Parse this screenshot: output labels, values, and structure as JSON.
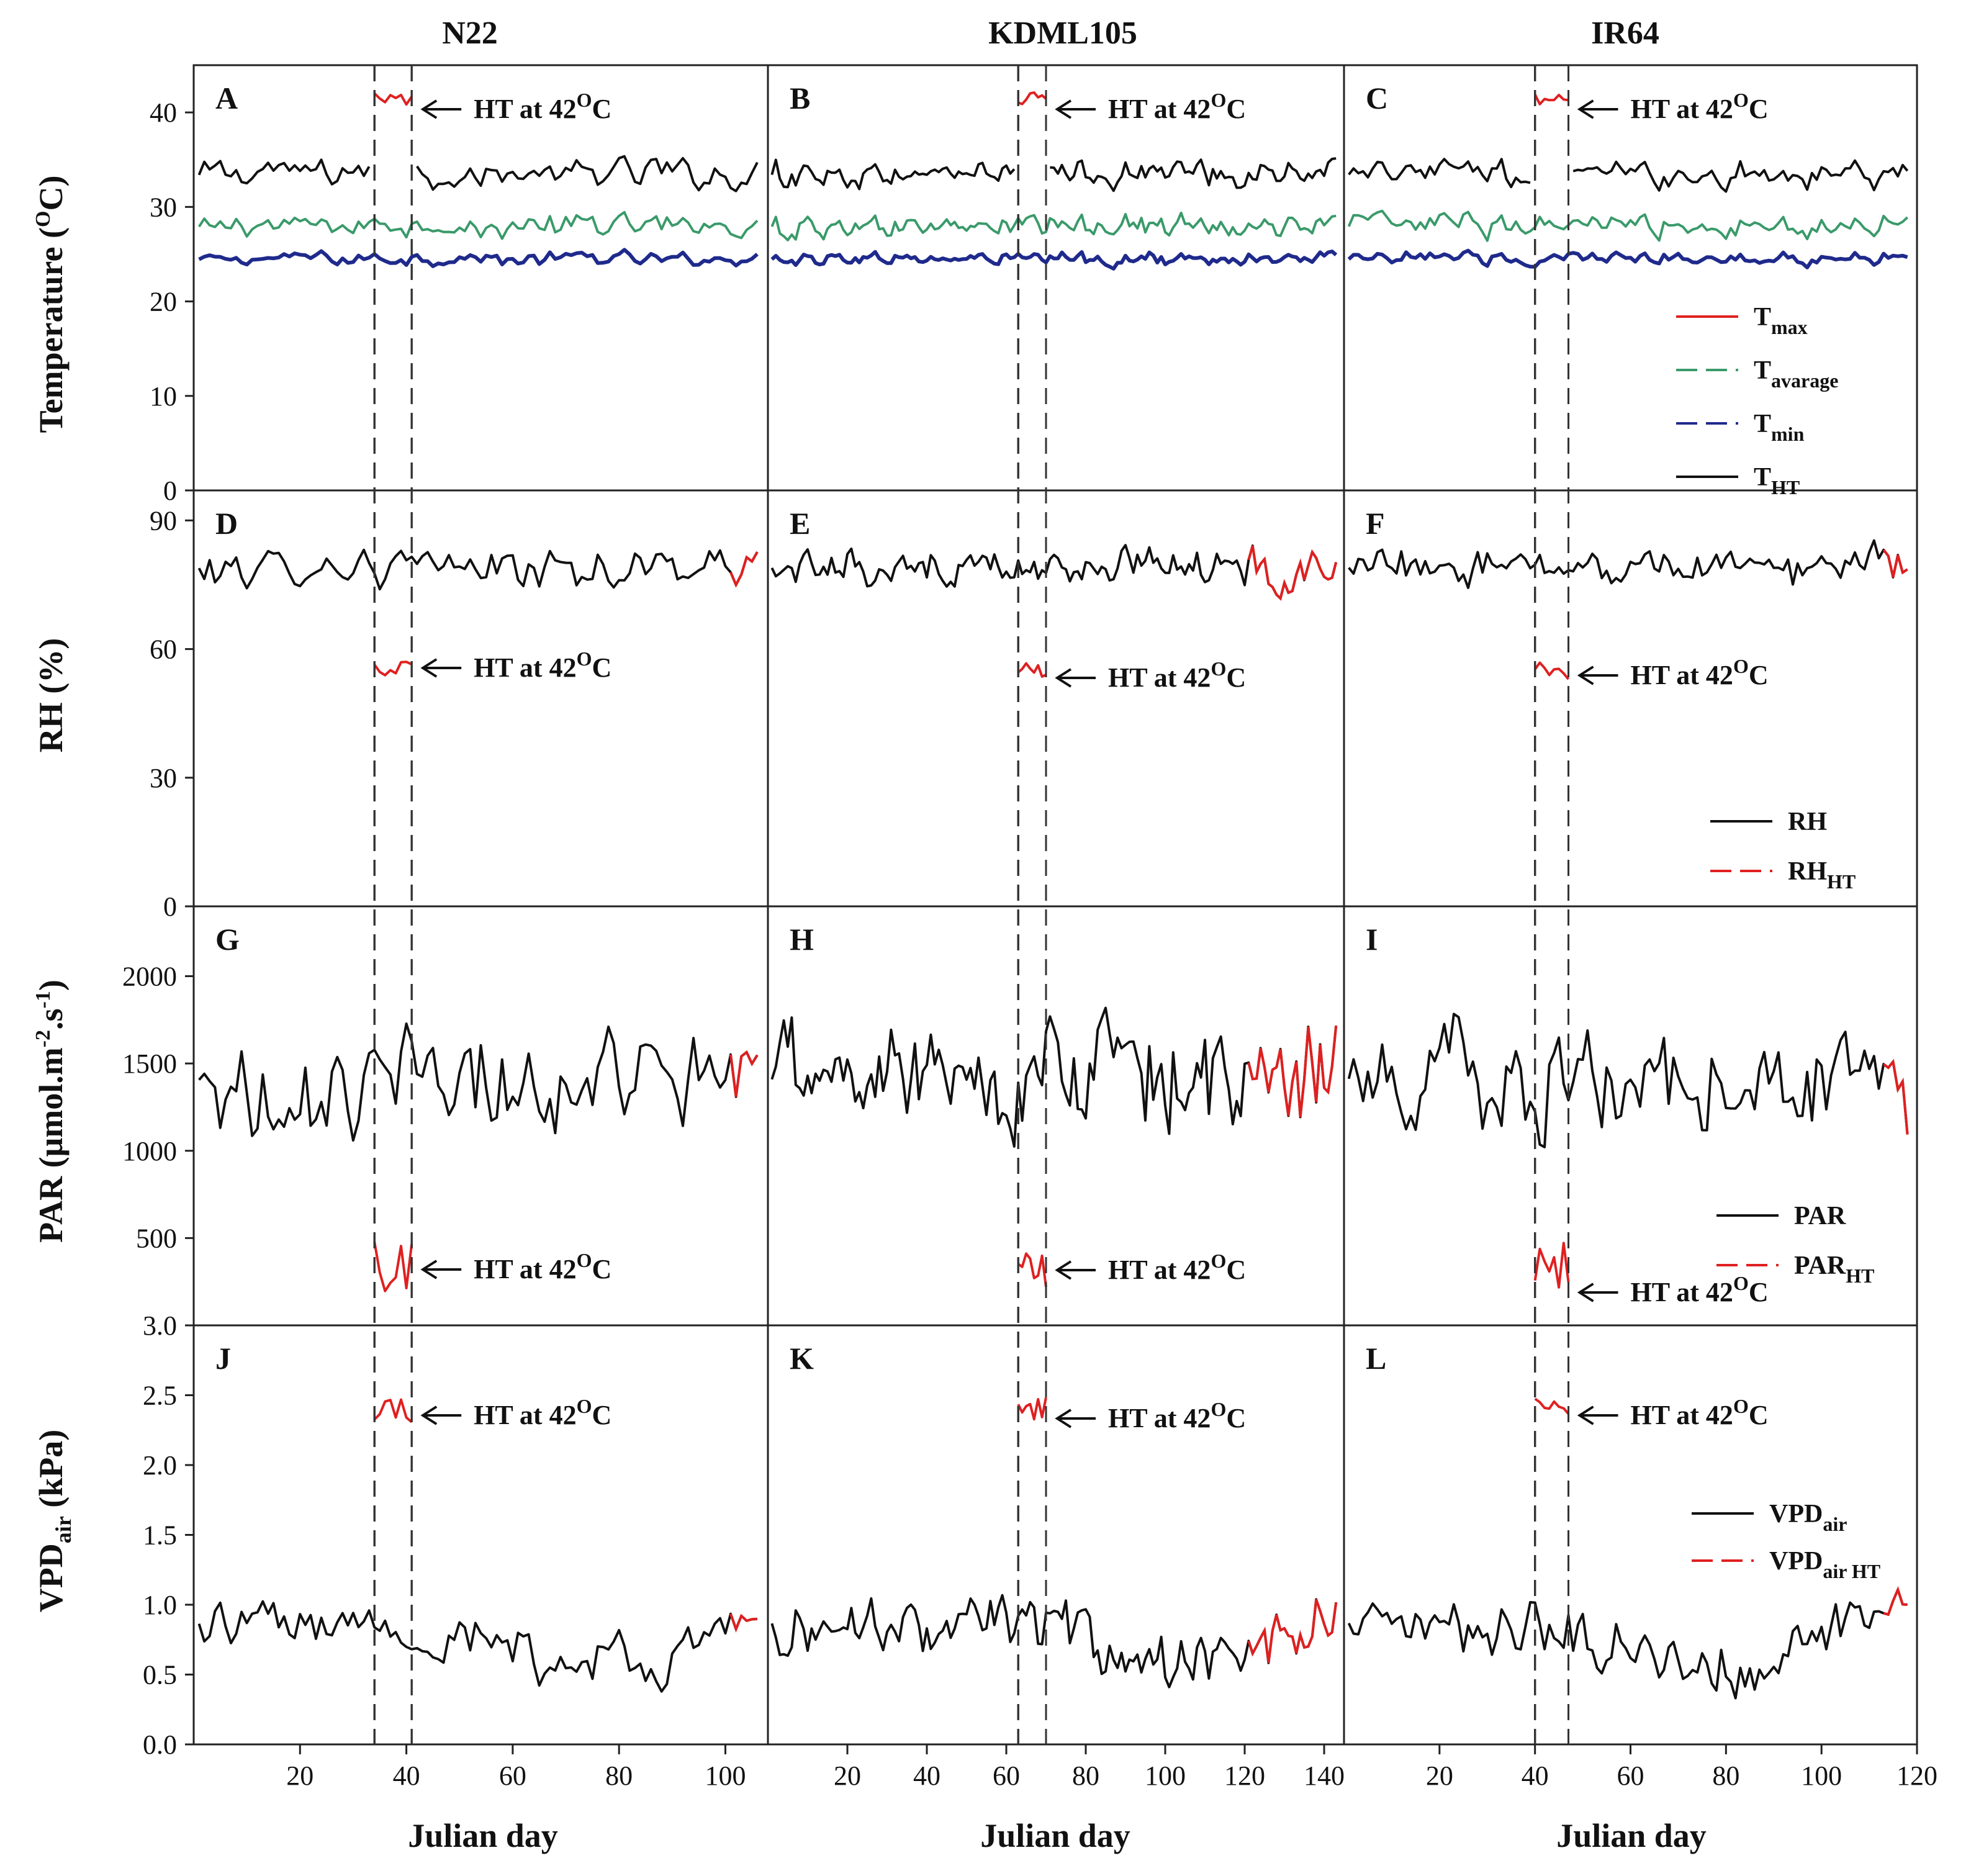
{
  "chart_data": {
    "type": "line",
    "layout": "grid-4x3",
    "xlabel": "Julian day",
    "annotation": "HT at 42",
    "annotation_unit": "C",
    "annotation_super": "O",
    "columns": [
      {
        "title": "N22",
        "xlim": [
          0,
          108
        ],
        "xticks": [
          20,
          40,
          60,
          80,
          100
        ],
        "ht_window": [
          34,
          41
        ],
        "ht_color_start": 101
      },
      {
        "title": "KDML105",
        "xlim": [
          0,
          145
        ],
        "xticks": [
          20,
          40,
          60,
          80,
          100,
          120,
          140
        ],
        "ht_window": [
          63,
          70
        ],
        "ht_color_start": 121
      },
      {
        "title": "IR64",
        "xlim": [
          0,
          120
        ],
        "xticks": [
          20,
          40,
          60,
          80,
          100,
          120
        ],
        "ht_window": [
          40,
          47
        ],
        "ht_color_start": 113
      }
    ],
    "rows": [
      {
        "variable": "Temperature",
        "ylabel_main": "Temperature (",
        "ylabel_super": "O",
        "ylabel_unit": "C)",
        "ylim": [
          0,
          45
        ],
        "yticks": [
          0,
          10,
          20,
          30,
          40
        ],
        "series": [
          {
            "name": "T",
            "sub": "max",
            "color": "#e02020",
            "style": "solid",
            "baseline": 33.5,
            "ht_value": 41.5
          },
          {
            "name": "T",
            "sub": "avarage",
            "color": "#3a9a6a",
            "style": "dash",
            "baseline": 28.0,
            "ht_value": null
          },
          {
            "name": "T",
            "sub": "min",
            "color": "#1f2a8c",
            "style": "dash",
            "baseline": 24.5,
            "ht_value": null
          },
          {
            "name": "T",
            "sub": "HT",
            "color": "#111111",
            "style": "solid",
            "baseline": 33.5,
            "ht_value": null
          }
        ]
      },
      {
        "variable": "RH",
        "ylabel_main": "RH (%)",
        "ylim": [
          0,
          97
        ],
        "yticks": [
          0,
          30,
          60,
          90
        ],
        "series": [
          {
            "name": "RH",
            "sub": "",
            "color": "#111111",
            "style": "solid",
            "baseline": 79,
            "ht_value": null
          },
          {
            "name": "RH",
            "sub": "HT",
            "color": "#e02020",
            "style": "dash",
            "baseline": 79,
            "ht_value": 55
          }
        ]
      },
      {
        "variable": "PAR",
        "ylabel_main": "PAR (μmol.m",
        "ylabel_super1": "-2",
        "ylabel_mid": ".s",
        "ylabel_super2": "-1",
        "ylabel_end": ")",
        "ylim": [
          0,
          2400
        ],
        "yticks": [
          500,
          1000,
          1500,
          2000
        ],
        "series": [
          {
            "name": "PAR",
            "sub": "",
            "color": "#111111",
            "style": "solid",
            "baseline": 1400,
            "ht_value": null
          },
          {
            "name": "PAR",
            "sub": "HT",
            "color": "#e02020",
            "style": "dash",
            "baseline": 1400,
            "ht_value": 340
          }
        ]
      },
      {
        "variable": "VPD",
        "ylabel_main": "VPD",
        "ylabel_sub": "air",
        "ylabel_unit": " (kPa)",
        "ylim": [
          0,
          3.0
        ],
        "yticks": [
          0.0,
          0.5,
          1.0,
          1.5,
          2.0,
          2.5,
          3.0
        ],
        "series": [
          {
            "name": "VPD",
            "sub": "air",
            "color": "#111111",
            "style": "solid",
            "baseline": 0.85,
            "ht_value": null
          },
          {
            "name": "VPD",
            "sub": "air HT",
            "color": "#e02020",
            "style": "dash",
            "baseline": 0.85,
            "ht_value": 2.4
          }
        ]
      }
    ],
    "panel_letters": [
      [
        "A",
        "B",
        "C"
      ],
      [
        "D",
        "E",
        "F"
      ],
      [
        "G",
        "H",
        "I"
      ],
      [
        "J",
        "K",
        "L"
      ]
    ],
    "tick_labels": {
      "temperature": [
        "0",
        "10",
        "20",
        "30",
        "40"
      ],
      "rh": [
        "0",
        "30",
        "60",
        "90"
      ],
      "par": [
        "500",
        "1000",
        "1500",
        "2000"
      ],
      "vpd": [
        "0.0",
        "0.5",
        "1.0",
        "1.5",
        "2.0",
        "2.5",
        "3.0"
      ],
      "x": [
        [
          "20",
          "40",
          "60",
          "80",
          "100"
        ],
        [
          "20",
          "40",
          "60",
          "80",
          "100",
          "120",
          "140"
        ],
        [
          "20",
          "40",
          "60",
          "80",
          "100",
          "120"
        ]
      ]
    }
  }
}
